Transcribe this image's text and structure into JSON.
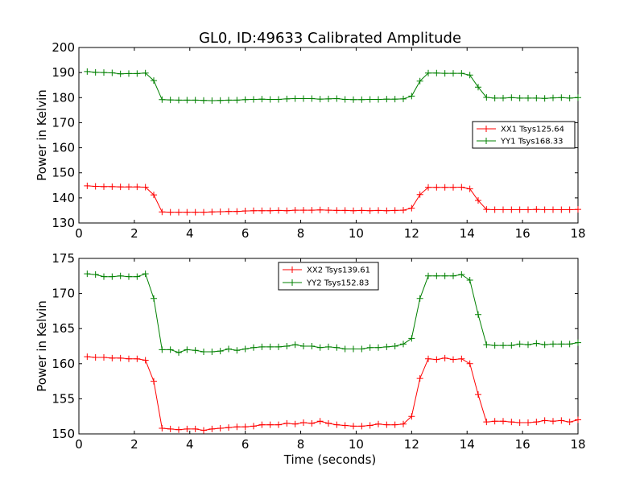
{
  "figure": {
    "title": "GL0, ID:49633 Calibrated Amplitude",
    "xlabel": "Time (seconds)"
  },
  "chart_data": [
    {
      "type": "line",
      "title": "GL0, ID:49633 Calibrated Amplitude",
      "ylabel": "Power in Kelvin",
      "xlabel": "",
      "xlim": [
        0,
        18
      ],
      "ylim": [
        130,
        200
      ],
      "xticks": [
        "0",
        "2",
        "4",
        "6",
        "8",
        "10",
        "12",
        "14",
        "16",
        "18"
      ],
      "yticks": [
        "130",
        "140",
        "150",
        "160",
        "170",
        "180",
        "190",
        "200"
      ],
      "legend_position": "right",
      "grid": false,
      "x": [
        0.3,
        0.6,
        0.9,
        1.2,
        1.5,
        1.8,
        2.1,
        2.4,
        2.7,
        3.0,
        3.3,
        3.6,
        3.9,
        4.2,
        4.5,
        4.8,
        5.1,
        5.4,
        5.7,
        6.0,
        6.3,
        6.6,
        6.9,
        7.2,
        7.5,
        7.8,
        8.1,
        8.4,
        8.7,
        9.0,
        9.3,
        9.6,
        9.9,
        10.2,
        10.5,
        10.8,
        11.1,
        11.4,
        11.7,
        12.0,
        12.3,
        12.6,
        12.9,
        13.2,
        13.5,
        13.8,
        14.1,
        14.4,
        14.7,
        15.0,
        15.3,
        15.6,
        15.9,
        16.2,
        16.5,
        16.8,
        17.1,
        17.4,
        17.7,
        18.0
      ],
      "series": [
        {
          "name": "XX1 Tsys125.64",
          "color": "#ff0000",
          "values": [
            144.8,
            144.6,
            144.5,
            144.5,
            144.4,
            144.4,
            144.4,
            144.3,
            141.2,
            134.4,
            134.3,
            134.3,
            134.3,
            134.3,
            134.3,
            134.4,
            134.5,
            134.6,
            134.6,
            134.8,
            134.9,
            134.9,
            134.9,
            135.0,
            134.9,
            135.1,
            135.1,
            135.1,
            135.2,
            135.1,
            135.0,
            135.0,
            134.9,
            135.0,
            134.9,
            135.0,
            134.9,
            135.0,
            135.1,
            135.9,
            141.3,
            144.2,
            144.2,
            144.2,
            144.2,
            144.3,
            143.6,
            139.0,
            135.4,
            135.3,
            135.3,
            135.3,
            135.3,
            135.3,
            135.4,
            135.3,
            135.3,
            135.3,
            135.3,
            135.4
          ]
        },
        {
          "name": "YY1 Tsys168.33",
          "color": "#008000",
          "values": [
            190.4,
            190.1,
            190.0,
            189.9,
            189.5,
            189.6,
            189.6,
            189.8,
            186.8,
            179.2,
            179.1,
            179.0,
            179.0,
            179.0,
            178.9,
            178.8,
            178.9,
            179.0,
            179.0,
            179.2,
            179.3,
            179.4,
            179.3,
            179.3,
            179.5,
            179.6,
            179.6,
            179.6,
            179.4,
            179.5,
            179.6,
            179.3,
            179.2,
            179.2,
            179.3,
            179.3,
            179.4,
            179.4,
            179.5,
            180.6,
            186.6,
            189.8,
            189.8,
            189.7,
            189.7,
            189.7,
            189.0,
            184.2,
            180.1,
            179.8,
            179.8,
            180.0,
            179.8,
            179.8,
            179.8,
            179.7,
            179.9,
            180.0,
            179.8,
            180.0
          ]
        }
      ]
    },
    {
      "type": "line",
      "title": "",
      "ylabel": "Power in Kelvin",
      "xlabel": "Time (seconds)",
      "xlim": [
        0,
        18
      ],
      "ylim": [
        150,
        175
      ],
      "xticks": [
        "0",
        "2",
        "4",
        "6",
        "8",
        "10",
        "12",
        "14",
        "16",
        "18"
      ],
      "yticks": [
        "150",
        "155",
        "160",
        "165",
        "170",
        "175"
      ],
      "legend_position": "top-center",
      "grid": false,
      "x": [
        0.3,
        0.6,
        0.9,
        1.2,
        1.5,
        1.8,
        2.1,
        2.4,
        2.7,
        3.0,
        3.3,
        3.6,
        3.9,
        4.2,
        4.5,
        4.8,
        5.1,
        5.4,
        5.7,
        6.0,
        6.3,
        6.6,
        6.9,
        7.2,
        7.5,
        7.8,
        8.1,
        8.4,
        8.7,
        9.0,
        9.3,
        9.6,
        9.9,
        10.2,
        10.5,
        10.8,
        11.1,
        11.4,
        11.7,
        12.0,
        12.3,
        12.6,
        12.9,
        13.2,
        13.5,
        13.8,
        14.1,
        14.4,
        14.7,
        15.0,
        15.3,
        15.6,
        15.9,
        16.2,
        16.5,
        16.8,
        17.1,
        17.4,
        17.7,
        18.0
      ],
      "series": [
        {
          "name": "XX2 Tsys139.61",
          "color": "#ff0000",
          "values": [
            161.0,
            160.9,
            160.9,
            160.8,
            160.8,
            160.7,
            160.7,
            160.5,
            157.5,
            150.8,
            150.7,
            150.6,
            150.7,
            150.7,
            150.5,
            150.7,
            150.8,
            150.9,
            151.0,
            151.0,
            151.1,
            151.3,
            151.3,
            151.3,
            151.5,
            151.4,
            151.6,
            151.5,
            151.8,
            151.5,
            151.3,
            151.2,
            151.1,
            151.1,
            151.2,
            151.4,
            151.3,
            151.3,
            151.4,
            152.5,
            157.9,
            160.7,
            160.6,
            160.8,
            160.6,
            160.7,
            160.0,
            155.6,
            151.7,
            151.8,
            151.8,
            151.7,
            151.6,
            151.6,
            151.7,
            151.9,
            151.8,
            151.9,
            151.7,
            152.0
          ]
        },
        {
          "name": "YY2 Tsys152.83",
          "color": "#008000",
          "values": [
            172.8,
            172.7,
            172.4,
            172.4,
            172.5,
            172.4,
            172.4,
            172.8,
            169.3,
            162.0,
            162.0,
            161.6,
            162.0,
            161.9,
            161.7,
            161.7,
            161.8,
            162.1,
            161.9,
            162.1,
            162.3,
            162.4,
            162.4,
            162.4,
            162.5,
            162.7,
            162.5,
            162.5,
            162.3,
            162.4,
            162.3,
            162.1,
            162.1,
            162.1,
            162.3,
            162.3,
            162.4,
            162.5,
            162.8,
            163.6,
            169.3,
            172.5,
            172.5,
            172.5,
            172.5,
            172.7,
            171.9,
            167.0,
            162.7,
            162.6,
            162.6,
            162.6,
            162.8,
            162.7,
            162.9,
            162.7,
            162.8,
            162.8,
            162.8,
            163.0
          ]
        }
      ]
    }
  ]
}
